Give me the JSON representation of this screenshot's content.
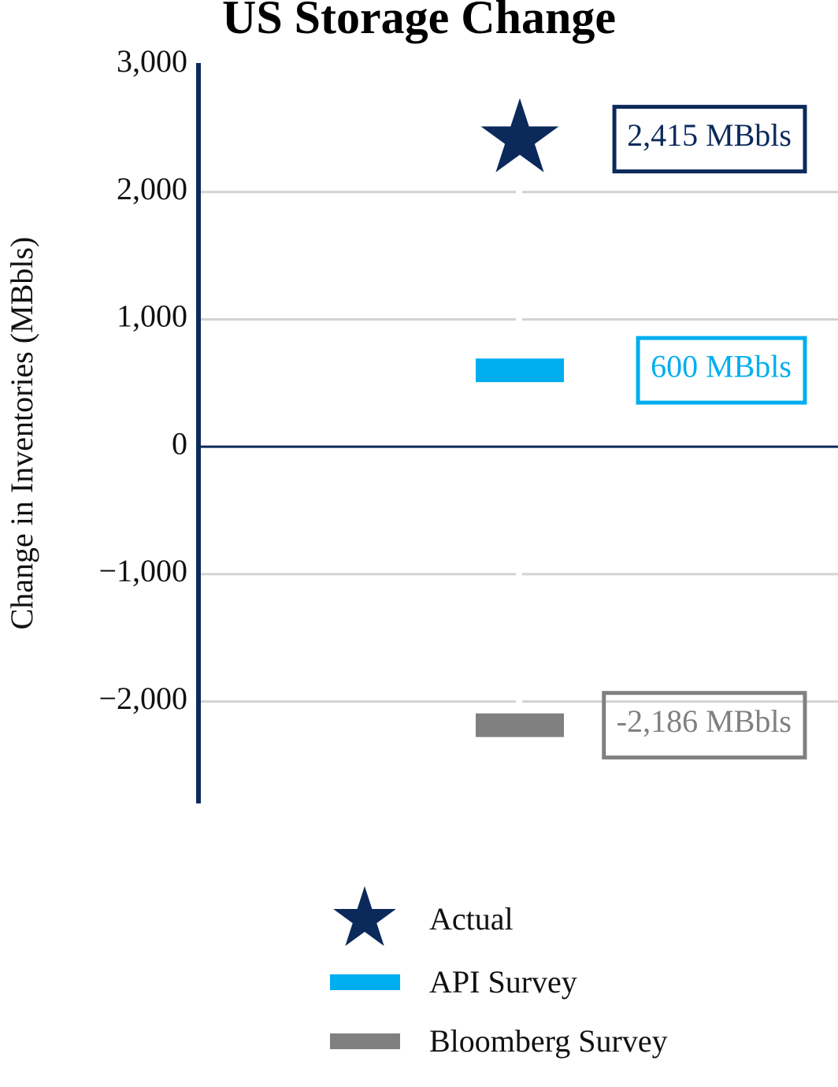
{
  "chart_data": {
    "type": "marker",
    "title": "US Storage Change",
    "y_label": "Change in Inventories (MBbls)",
    "categories": [
      null
    ],
    "series": [
      {
        "name": "Actual",
        "marker": "star",
        "color": "#0b2a5b",
        "values": [
          2415
        ],
        "value_labels": [
          "2,415 MBbls"
        ]
      },
      {
        "name": "API Survey",
        "marker": "bar",
        "color": "#00aeef",
        "values": [
          600
        ],
        "value_labels": [
          "600 MBbls"
        ]
      },
      {
        "name": "Bloomberg Survey",
        "marker": "bar",
        "color": "#808080",
        "values": [
          -2186
        ],
        "value_labels": [
          "-2,186 MBbls"
        ]
      }
    ],
    "ylim": [
      -2800,
      3000
    ],
    "yticks": [
      {
        "value": 3000,
        "label": "3,000"
      },
      {
        "value": 2000,
        "label": "2,000"
      },
      {
        "value": 1000,
        "label": "1,000"
      },
      0,
      {
        "value": -1000,
        "label": "−1,000"
      },
      {
        "value": -2000,
        "label": "−2,000"
      }
    ],
    "grid": true,
    "legend": "bottom"
  }
}
